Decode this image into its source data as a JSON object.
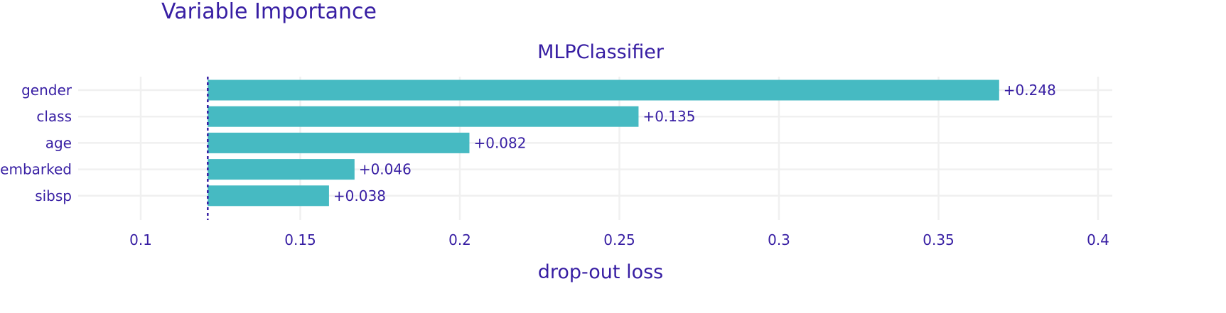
{
  "chart_data": {
    "type": "bar",
    "orientation": "horizontal",
    "title": "Variable Importance",
    "subplot_title": "MLPClassifier",
    "xlabel": "drop-out loss",
    "ylabel": "",
    "xlim": [
      0.08,
      0.4
    ],
    "x_ticks": [
      0.1,
      0.15,
      0.2,
      0.25,
      0.3,
      0.35,
      0.4
    ],
    "x_tick_labels": [
      "0.1",
      "0.15",
      "0.2",
      "0.25",
      "0.3",
      "0.35",
      "0.4"
    ],
    "baseline": 0.121,
    "categories": [
      "gender",
      "class",
      "age",
      "embarked",
      "sibsp"
    ],
    "values": [
      0.369,
      0.256,
      0.203,
      0.167,
      0.159
    ],
    "labels": [
      "+0.248",
      "+0.135",
      "+0.082",
      "+0.046",
      "+0.038"
    ],
    "grid": true,
    "colors": {
      "bar": "#46bac2",
      "text": "#371ea3",
      "grid": "#f0f0f0",
      "baseline": "#371ea3"
    }
  }
}
